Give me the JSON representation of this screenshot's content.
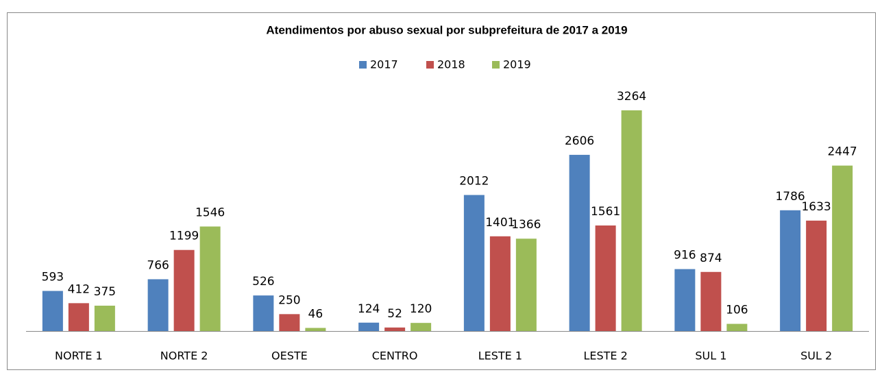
{
  "chart_data": {
    "type": "bar",
    "title": "Atendimentos por abuso sexual por subprefeitura de 2017 a 2019",
    "categories": [
      "NORTE 1",
      "NORTE 2",
      "OESTE",
      "CENTRO",
      "LESTE 1",
      "LESTE 2",
      "SUL 1",
      "SUL 2"
    ],
    "series": [
      {
        "name": "2017",
        "color": "#4f81bd",
        "values": [
          593,
          766,
          526,
          124,
          2012,
          2606,
          916,
          1786
        ]
      },
      {
        "name": "2018",
        "color": "#c0504d",
        "values": [
          412,
          1199,
          250,
          52,
          1401,
          1561,
          874,
          1633
        ]
      },
      {
        "name": "2019",
        "color": "#9bbb59",
        "values": [
          375,
          1546,
          46,
          120,
          1366,
          3264,
          106,
          2447
        ]
      }
    ],
    "legend": "top"
  }
}
